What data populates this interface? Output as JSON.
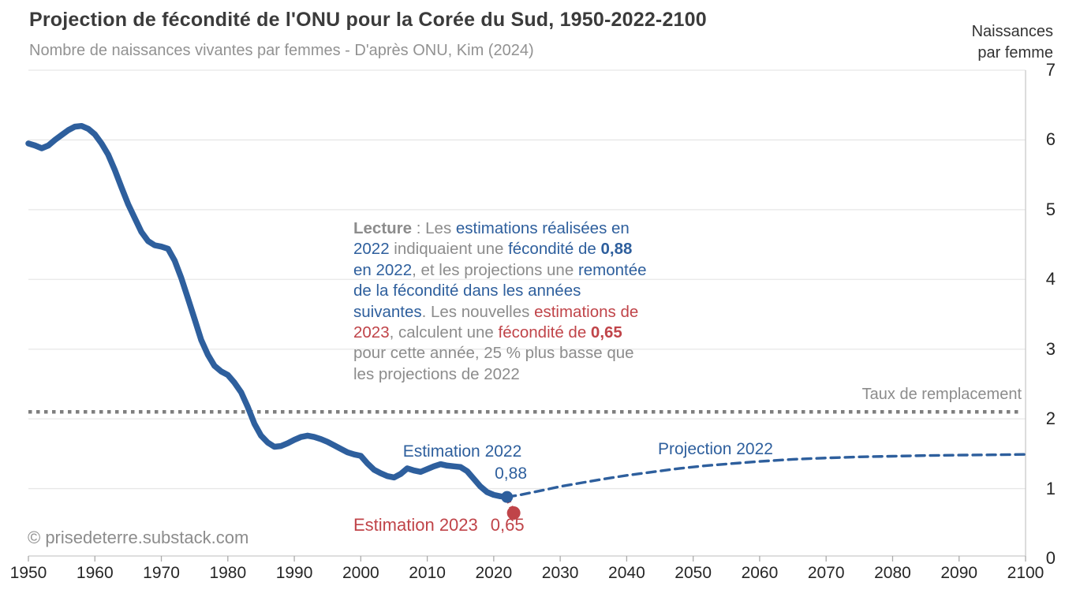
{
  "header": {
    "title": "Projection de fécondité de l'ONU pour la Corée du Sud, 1950-2022-2100",
    "subtitle": "Nombre de naissances vivantes par femmes - D'après ONU, Kim (2024)",
    "y_axis_title": "Naissances\npar femme"
  },
  "footer": {
    "copyright": "© prisedeterre.substack.com"
  },
  "colors": {
    "blue": "#2e5f9d",
    "red": "#c04449",
    "gray_text": "#8c8c8c",
    "gridline": "#e7e7e7",
    "axis_line": "#c9c9c9",
    "tick": "#aaaaaa",
    "replacement_line": "#7f7f7f"
  },
  "labels": {
    "estimation_2022": "Estimation 2022",
    "estimation_2022_value": "0,88",
    "projection_2022": "Projection 2022",
    "estimation_2023": "Estimation 2023",
    "estimation_2023_value": "0,65",
    "replacement": "Taux de remplacement"
  },
  "annotation": {
    "lines": [
      [
        {
          "t": "Lecture",
          "c": "g",
          "b": 1
        },
        {
          "t": " : Les ",
          "c": "g"
        },
        {
          "t": "estimations réalisées en",
          "c": "b"
        }
      ],
      [
        {
          "t": "2022",
          "c": "b"
        },
        {
          "t": " indiquaient une ",
          "c": "g"
        },
        {
          "t": "fécondité de ",
          "c": "b"
        },
        {
          "t": "0,88",
          "c": "b",
          "b": 1
        }
      ],
      [
        {
          "t": "en 2022",
          "c": "b"
        },
        {
          "t": ", et les projections une ",
          "c": "g"
        },
        {
          "t": "remontée",
          "c": "b"
        }
      ],
      [
        {
          "t": "de la fécondité dans les années",
          "c": "b"
        }
      ],
      [
        {
          "t": "suivantes",
          "c": "b"
        },
        {
          "t": ". Les nouvelles ",
          "c": "g"
        },
        {
          "t": "estimations de",
          "c": "r"
        }
      ],
      [
        {
          "t": "2023",
          "c": "r"
        },
        {
          "t": ", calculent une ",
          "c": "g"
        },
        {
          "t": "fécondité de ",
          "c": "r"
        },
        {
          "t": "0,65",
          "c": "r",
          "b": 1
        }
      ],
      [
        {
          "t": "pour cette année, 25 % plus basse que",
          "c": "g"
        }
      ],
      [
        {
          "t": "les projections de 2022",
          "c": "g"
        }
      ]
    ]
  },
  "chart_data": {
    "type": "line",
    "title": "Projection de fécondité de l'ONU pour la Corée du Sud, 1950-2022-2100",
    "xlabel": "",
    "ylabel": "Naissances par femme",
    "x_range": [
      1950,
      2100
    ],
    "y_range": [
      0,
      7
    ],
    "xticks": [
      1950,
      1960,
      1970,
      1980,
      1990,
      2000,
      2010,
      2020,
      2030,
      2040,
      2050,
      2060,
      2070,
      2080,
      2090,
      2100
    ],
    "yticks": [
      0,
      1,
      2,
      3,
      4,
      5,
      6,
      7
    ],
    "grid": true,
    "replacement_level": 2.1,
    "series": [
      {
        "name": "Estimation 2022",
        "style": "solid",
        "color": "#2e5f9d",
        "points": [
          [
            1950,
            5.95
          ],
          [
            1951,
            5.92
          ],
          [
            1952,
            5.88
          ],
          [
            1953,
            5.92
          ],
          [
            1954,
            6.0
          ],
          [
            1955,
            6.07
          ],
          [
            1956,
            6.14
          ],
          [
            1957,
            6.19
          ],
          [
            1958,
            6.2
          ],
          [
            1959,
            6.16
          ],
          [
            1960,
            6.08
          ],
          [
            1961,
            5.95
          ],
          [
            1962,
            5.79
          ],
          [
            1963,
            5.57
          ],
          [
            1964,
            5.32
          ],
          [
            1965,
            5.08
          ],
          [
            1966,
            4.88
          ],
          [
            1967,
            4.68
          ],
          [
            1968,
            4.55
          ],
          [
            1969,
            4.49
          ],
          [
            1970,
            4.47
          ],
          [
            1971,
            4.44
          ],
          [
            1972,
            4.27
          ],
          [
            1973,
            4.02
          ],
          [
            1974,
            3.73
          ],
          [
            1975,
            3.43
          ],
          [
            1976,
            3.13
          ],
          [
            1977,
            2.92
          ],
          [
            1978,
            2.76
          ],
          [
            1979,
            2.68
          ],
          [
            1980,
            2.63
          ],
          [
            1981,
            2.52
          ],
          [
            1982,
            2.38
          ],
          [
            1983,
            2.17
          ],
          [
            1984,
            1.93
          ],
          [
            1985,
            1.76
          ],
          [
            1986,
            1.66
          ],
          [
            1987,
            1.6
          ],
          [
            1988,
            1.61
          ],
          [
            1989,
            1.65
          ],
          [
            1990,
            1.7
          ],
          [
            1991,
            1.74
          ],
          [
            1992,
            1.76
          ],
          [
            1993,
            1.74
          ],
          [
            1994,
            1.71
          ],
          [
            1995,
            1.67
          ],
          [
            1996,
            1.62
          ],
          [
            1997,
            1.57
          ],
          [
            1998,
            1.52
          ],
          [
            1999,
            1.49
          ],
          [
            2000,
            1.47
          ],
          [
            2001,
            1.36
          ],
          [
            2002,
            1.27
          ],
          [
            2003,
            1.22
          ],
          [
            2004,
            1.18
          ],
          [
            2005,
            1.16
          ],
          [
            2006,
            1.21
          ],
          [
            2007,
            1.29
          ],
          [
            2008,
            1.26
          ],
          [
            2009,
            1.24
          ],
          [
            2010,
            1.28
          ],
          [
            2011,
            1.32
          ],
          [
            2012,
            1.35
          ],
          [
            2013,
            1.33
          ],
          [
            2014,
            1.32
          ],
          [
            2015,
            1.31
          ],
          [
            2016,
            1.25
          ],
          [
            2017,
            1.14
          ],
          [
            2018,
            1.03
          ],
          [
            2019,
            0.95
          ],
          [
            2020,
            0.91
          ],
          [
            2021,
            0.89
          ],
          [
            2022,
            0.88
          ]
        ]
      },
      {
        "name": "Projection 2022",
        "style": "dashed",
        "color": "#2e5f9d",
        "points": [
          [
            2022,
            0.88
          ],
          [
            2024,
            0.91
          ],
          [
            2026,
            0.95
          ],
          [
            2028,
            0.99
          ],
          [
            2030,
            1.03
          ],
          [
            2033,
            1.08
          ],
          [
            2036,
            1.13
          ],
          [
            2040,
            1.19
          ],
          [
            2044,
            1.24
          ],
          [
            2048,
            1.29
          ],
          [
            2052,
            1.33
          ],
          [
            2056,
            1.36
          ],
          [
            2060,
            1.39
          ],
          [
            2065,
            1.42
          ],
          [
            2070,
            1.44
          ],
          [
            2075,
            1.455
          ],
          [
            2080,
            1.465
          ],
          [
            2085,
            1.475
          ],
          [
            2090,
            1.48
          ],
          [
            2095,
            1.485
          ],
          [
            2100,
            1.49
          ]
        ]
      },
      {
        "name": "Estimation 2023",
        "style": "dashed",
        "color": "#c04449",
        "points": [
          [
            2022,
            0.88
          ],
          [
            2023,
            0.65
          ]
        ]
      }
    ],
    "markers": [
      {
        "name": "estimate-2022-point",
        "x": 2022,
        "y": 0.88,
        "color": "#2e5f9d",
        "r": 7.5
      },
      {
        "name": "estimate-2023-point",
        "x": 2023,
        "y": 0.65,
        "color": "#c04449",
        "r": 8.5
      }
    ],
    "legend_position": "none"
  }
}
